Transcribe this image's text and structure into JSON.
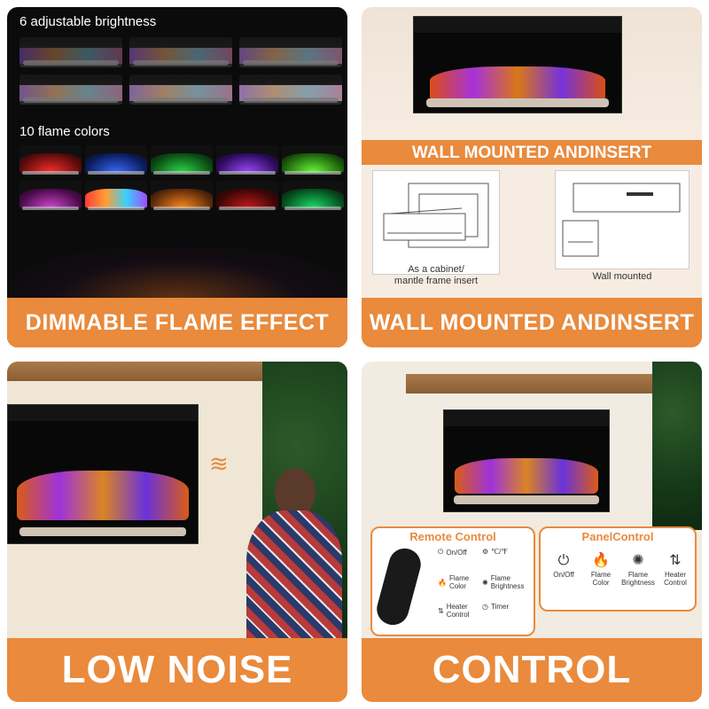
{
  "panels": {
    "dimmable": {
      "brightness_label": "6 adjustable brightness",
      "colors_label": "10 flame colors",
      "banner": "DIMMABLE FLAME EFFECT"
    },
    "wall": {
      "top_label": "WALL MOUNTED ANDINSERT",
      "insert_caption_line1": "As a cabinet/",
      "insert_caption_line2": "mantle frame insert",
      "wall_caption": "Wall mounted",
      "banner": "WALL MOUNTED ANDINSERT"
    },
    "noise": {
      "banner": "LOW NOISE"
    },
    "control": {
      "remote_title": "Remote Control",
      "panel_title": "PanelControl",
      "remote_items": [
        {
          "icon": "power-icon",
          "label": "On/Off"
        },
        {
          "icon": "celsius-fahrenheit-icon",
          "label": "℃/℉"
        },
        {
          "icon": "flame-color-icon",
          "label": "Flame Color"
        },
        {
          "icon": "flame-brightness-icon",
          "label": "Flame Brightness"
        },
        {
          "icon": "heater-control-icon",
          "label": "Heater Control"
        },
        {
          "icon": "timer-icon",
          "label": "Timer"
        }
      ],
      "panel_items": [
        {
          "icon": "power-icon",
          "label": "On/Off"
        },
        {
          "icon": "flame-color-icon",
          "label": "Flame Color"
        },
        {
          "icon": "flame-brightness-icon",
          "label": "Flame Brightness"
        },
        {
          "icon": "heater-control-icon",
          "label": "Heater Control"
        }
      ],
      "banner": "CONTROL"
    }
  },
  "colors": {
    "accent": "#e98a3c"
  }
}
